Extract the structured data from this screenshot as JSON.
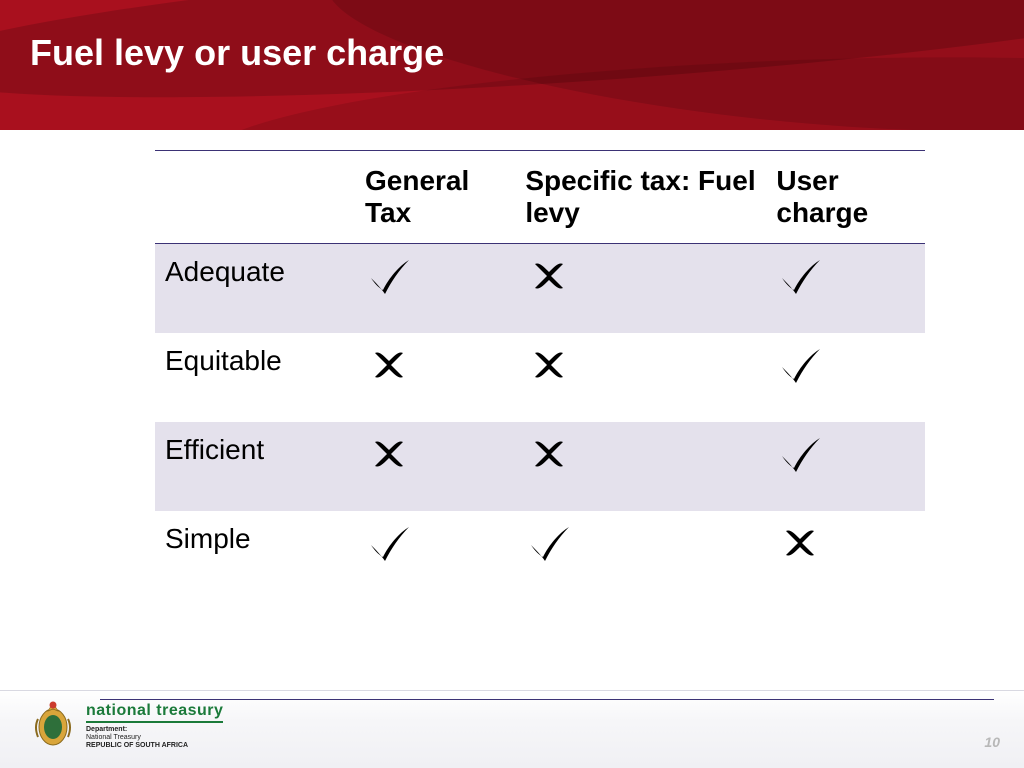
{
  "header": {
    "title": "Fuel levy or user charge",
    "background_color": "#a9101e",
    "title_color": "#ffffff",
    "title_fontsize": 36
  },
  "table": {
    "type": "table",
    "border_color": "#3b3275",
    "alt_row_bg": "#e4e1ec",
    "header_fontsize": 28,
    "cell_fontsize": 28,
    "text_color": "#000000",
    "mark_color": "#000000",
    "columns": [
      "",
      "General Tax",
      "Specific tax: Fuel levy",
      "User charge"
    ],
    "rows": [
      {
        "label": "Adequate",
        "values": [
          "check",
          "cross",
          "check"
        ]
      },
      {
        "label": "Equitable",
        "values": [
          "cross",
          "cross",
          "check"
        ]
      },
      {
        "label": "Efficient",
        "values": [
          "cross",
          "cross",
          "check"
        ]
      },
      {
        "label": "Simple",
        "values": [
          "check",
          "check",
          "cross"
        ]
      }
    ]
  },
  "footer": {
    "brand_top": "national treasury",
    "brand_sub1": "Department:",
    "brand_sub2": "National Treasury",
    "brand_sub3": "REPUBLIC OF SOUTH AFRICA",
    "brand_color": "#1b7a3a",
    "rule_color": "#3b3275",
    "page_number": "10",
    "page_number_color": "#b8b8b8"
  },
  "icons": {
    "check_label": "check-mark",
    "cross_label": "cross-mark"
  }
}
